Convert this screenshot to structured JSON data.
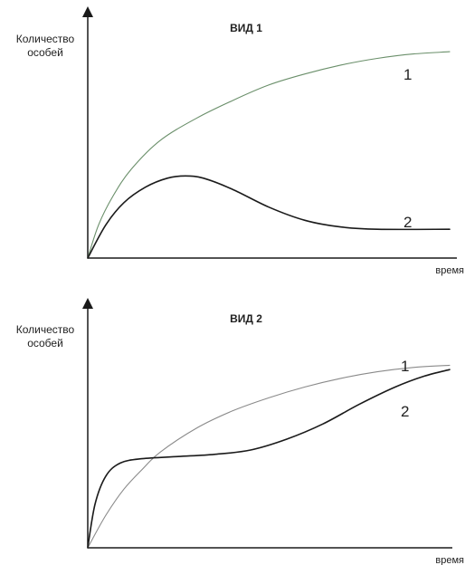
{
  "chart_data": [
    {
      "type": "line",
      "title": "ВИД 1",
      "ylabel": [
        "Количество",
        "особей"
      ],
      "xlabel": "время",
      "xlim": [
        0,
        100
      ],
      "ylim": [
        0,
        100
      ],
      "series": [
        {
          "name": "1",
          "color": "#6a8f6a",
          "x": [
            0,
            3,
            7,
            12,
            20,
            30,
            40,
            50,
            60,
            70,
            80,
            90,
            100
          ],
          "y": [
            0,
            15,
            28,
            40,
            53,
            63,
            71,
            78,
            83,
            87,
            90,
            92,
            93
          ]
        },
        {
          "name": "2",
          "color": "#1a1a1a",
          "x": [
            0,
            5,
            10,
            16,
            22,
            27,
            32,
            40,
            50,
            60,
            70,
            80,
            100
          ],
          "y": [
            0,
            15,
            25,
            32,
            36,
            37,
            36,
            31,
            23,
            17,
            14,
            13,
            13
          ]
        }
      ]
    },
    {
      "type": "line",
      "title": "ВИД 2",
      "ylabel": [
        "Количество",
        "особей"
      ],
      "xlabel": "время",
      "xlim": [
        0,
        100
      ],
      "ylim": [
        0,
        100
      ],
      "series": [
        {
          "name": "1",
          "color": "#8a8a8a",
          "x": [
            0,
            5,
            10,
            15,
            20,
            30,
            40,
            50,
            60,
            70,
            80,
            90,
            100
          ],
          "y": [
            0,
            15,
            27,
            36,
            44,
            55,
            63,
            69,
            74,
            78,
            81,
            83,
            84
          ]
        },
        {
          "name": "2",
          "color": "#1a1a1a",
          "x": [
            0,
            2,
            5,
            9,
            15,
            25,
            35,
            45,
            55,
            65,
            75,
            85,
            93,
            100
          ],
          "y": [
            0,
            20,
            33,
            39,
            41,
            42,
            43,
            45,
            50,
            57,
            66,
            74,
            79,
            82
          ]
        }
      ]
    }
  ]
}
